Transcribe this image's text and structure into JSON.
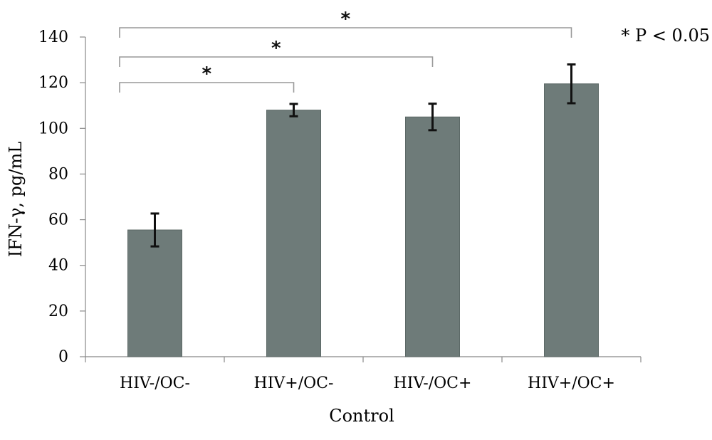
{
  "chart_data": {
    "type": "bar",
    "categories": [
      "HIV-/OC-",
      "HIV+/OC-",
      "HIV-/OC+",
      "HIV+/OC+"
    ],
    "values": [
      55.5,
      108,
      105,
      119.5
    ],
    "errors": [
      7.2,
      2.7,
      5.8,
      8.5
    ],
    "xlabel": "Control",
    "ylabel": "IFN-γ, pg/mL",
    "ylim": [
      0,
      140
    ],
    "yticks": [
      0,
      20,
      40,
      60,
      80,
      100,
      120,
      140
    ],
    "grid": false,
    "bar_color": "#6e7b79",
    "significance": [
      {
        "from": 0,
        "to": 1,
        "label": "*"
      },
      {
        "from": 0,
        "to": 2,
        "label": "*"
      },
      {
        "from": 0,
        "to": 3,
        "label": "*"
      }
    ],
    "annotation": "* P < 0.05"
  }
}
